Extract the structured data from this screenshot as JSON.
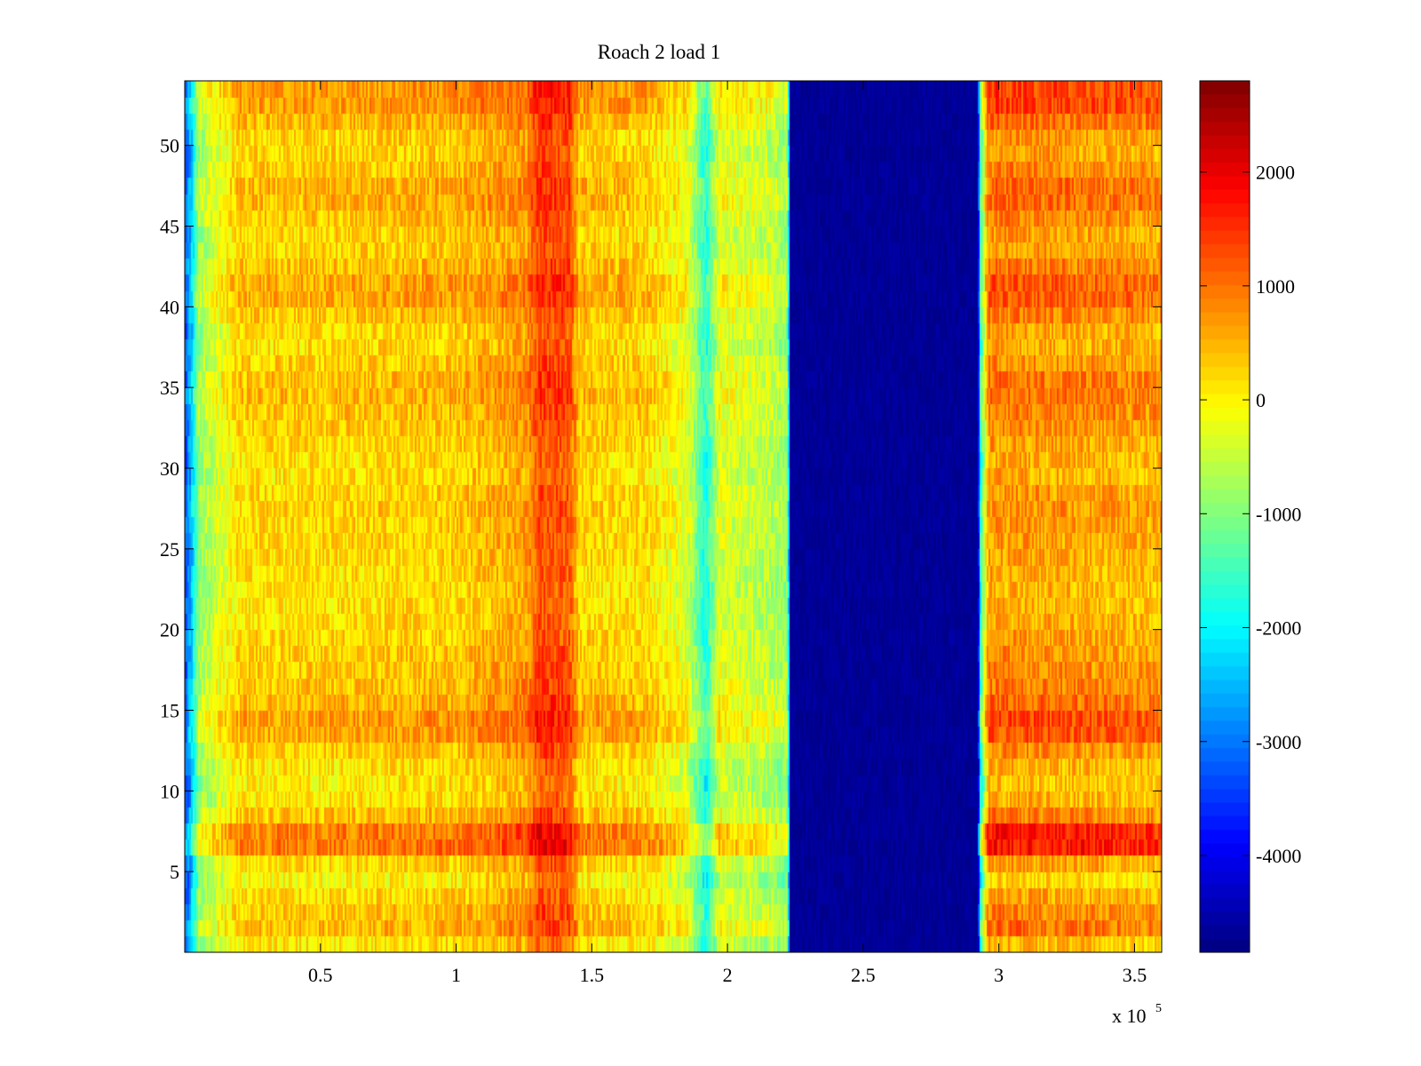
{
  "chart_data": {
    "type": "heatmap",
    "title": "Roach 2 load 1",
    "xlabel": "",
    "ylabel": "",
    "x_multiplier": "x 10",
    "x_multiplier_exponent": "5",
    "xlim": [
      0,
      360000
    ],
    "ylim": [
      0,
      54
    ],
    "x_ticks": [
      {
        "value": 50000,
        "label": "0.5"
      },
      {
        "value": 100000,
        "label": "1"
      },
      {
        "value": 150000,
        "label": "1.5"
      },
      {
        "value": 200000,
        "label": "2"
      },
      {
        "value": 250000,
        "label": "2.5"
      },
      {
        "value": 300000,
        "label": "3"
      },
      {
        "value": 350000,
        "label": "3.5"
      }
    ],
    "y_ticks": [
      {
        "value": 5,
        "label": "5"
      },
      {
        "value": 10,
        "label": "10"
      },
      {
        "value": 15,
        "label": "15"
      },
      {
        "value": 20,
        "label": "20"
      },
      {
        "value": 25,
        "label": "25"
      },
      {
        "value": 30,
        "label": "30"
      },
      {
        "value": 35,
        "label": "35"
      },
      {
        "value": 40,
        "label": "40"
      },
      {
        "value": 45,
        "label": "45"
      },
      {
        "value": 50,
        "label": "50"
      }
    ],
    "colormap": "jet",
    "clim": [
      -4850,
      2800
    ],
    "colorbar": {
      "placement": "right",
      "ticks": [
        {
          "value": 2000,
          "label": "2000"
        },
        {
          "value": 1000,
          "label": "1000"
        },
        {
          "value": 0,
          "label": "0"
        },
        {
          "value": -1000,
          "label": "-1000"
        },
        {
          "value": -2000,
          "label": "-2000"
        },
        {
          "value": -3000,
          "label": "-3000"
        },
        {
          "value": -4000,
          "label": "-4000"
        }
      ]
    },
    "column_profile": [
      {
        "x": 0,
        "value": -3200
      },
      {
        "x": 2000,
        "value": -2400
      },
      {
        "x": 5000,
        "value": -700
      },
      {
        "x": 20000,
        "value": 300
      },
      {
        "x": 60000,
        "value": 350
      },
      {
        "x": 100000,
        "value": 450
      },
      {
        "x": 120000,
        "value": 700
      },
      {
        "x": 126000,
        "value": 800
      },
      {
        "x": 130000,
        "value": 1400
      },
      {
        "x": 142000,
        "value": 1300
      },
      {
        "x": 145000,
        "value": 400
      },
      {
        "x": 170000,
        "value": 300
      },
      {
        "x": 185000,
        "value": -200
      },
      {
        "x": 192000,
        "value": -1700
      },
      {
        "x": 197000,
        "value": -200
      },
      {
        "x": 215000,
        "value": -450
      },
      {
        "x": 222000,
        "value": -800
      },
      {
        "x": 223000,
        "value": -4800
      },
      {
        "x": 292000,
        "value": -4800
      },
      {
        "x": 293000,
        "value": -1500
      },
      {
        "x": 296000,
        "value": 900
      },
      {
        "x": 330000,
        "value": 800
      },
      {
        "x": 360000,
        "value": 700
      }
    ],
    "row_profile": [
      {
        "y": 0,
        "value": -300
      },
      {
        "y": 1,
        "value": 500
      },
      {
        "y": 3,
        "value": 300
      },
      {
        "y": 5,
        "value": -150
      },
      {
        "y": 7,
        "value": 1300
      },
      {
        "y": 8,
        "value": 500
      },
      {
        "y": 10,
        "value": 0
      },
      {
        "y": 12,
        "value": 150
      },
      {
        "y": 14,
        "value": 750
      },
      {
        "y": 16,
        "value": 400
      },
      {
        "y": 18,
        "value": 300
      },
      {
        "y": 22,
        "value": 100
      },
      {
        "y": 28,
        "value": 300
      },
      {
        "y": 30,
        "value": 100
      },
      {
        "y": 35,
        "value": 500
      },
      {
        "y": 38,
        "value": 100
      },
      {
        "y": 41,
        "value": 650
      },
      {
        "y": 44,
        "value": 150
      },
      {
        "y": 47,
        "value": 550
      },
      {
        "y": 50,
        "value": 150
      },
      {
        "y": 53,
        "value": 800
      },
      {
        "y": 54,
        "value": 600
      }
    ]
  }
}
